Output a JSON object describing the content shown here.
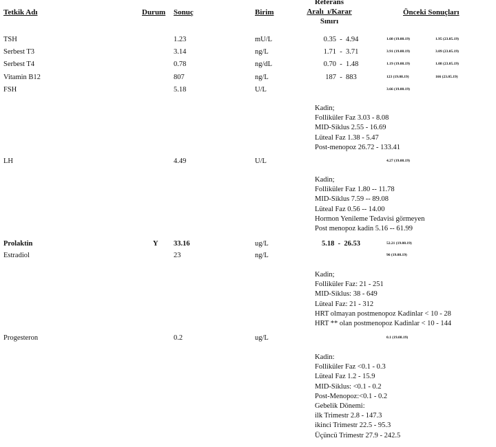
{
  "header": {
    "test": "Tetkik Adı",
    "status": "Durum",
    "result": "Sonuç",
    "unit": "Birim",
    "reference": [
      "Referans",
      "Aralı  ı/Karar",
      "Sınırı"
    ],
    "previous": "Önceki Sonuçları"
  },
  "rows": [
    {
      "test": "TSH",
      "result": "1.23",
      "unit": "mU/L",
      "reference": "0.35  -  4.94",
      "previous": [
        "1.60 (19.08.19)",
        "1.95 (23.05.19)"
      ]
    },
    {
      "test": "Serbest T3",
      "result": "3.14",
      "unit": "ng/L",
      "reference": "1.71  -  3.71",
      "previous": [
        "3.91 (19.08.19)",
        "3.09 (23.05.19)"
      ]
    },
    {
      "test": "Serbest T4",
      "result": "0.78",
      "unit": "ng/dL",
      "reference": "0.70  -  1.48",
      "previous": [
        "1.19 (19.08.19)",
        "1.08 (23.05.19)"
      ]
    },
    {
      "test": "Vitamin B12",
      "result": "807",
      "unit": "ng/L",
      "reference": "187  -  883",
      "previous": [
        "123 (19.08.19)",
        "166 (23.05.19)"
      ]
    },
    {
      "test": "FSH",
      "result": "5.18",
      "unit": "U/L",
      "previous": [
        "3.66 (19.08.19)"
      ],
      "notes": [
        "Kadin;",
        "Folliküler Faz 3.03 - 8.08",
        "MID-Siklus 2.55 - 16.69",
        "Lüteal Faz 1.38 - 5.47",
        "Post-menopoz 26.72 - 133.41"
      ]
    },
    {
      "test": "LH",
      "result": "4.49",
      "unit": "U/L",
      "previous": [
        "4.27 (19.08.19)"
      ],
      "notes": [
        "Kadin;",
        "Folliküler Faz 1.80 -- 11.78",
        "MID-Siklus 7.59 -- 89.08",
        "Lüteal Faz 0.56 -- 14.00",
        "Hormon Yenileme Tedavisi görmeyen",
        "Post menopoz kadin 5.16 -- 61.99"
      ]
    },
    {
      "test": "Prolaktin",
      "status": "Y",
      "result": "33.16",
      "unit": "ug/L",
      "reference": "5.18  -  26.53",
      "previous": [
        "52.21 (19.08.19)"
      ]
    },
    {
      "test": "Estradiol",
      "result": "23",
      "unit": "ng/L",
      "previous": [
        "96 (19.08.19)"
      ],
      "notes": [
        "Kadin;",
        "Folliküler Faz: 21 - 251",
        "MID-Siklus: 38 - 649",
        "Lüteal Faz: 21 - 312",
        "HRT olmayan postmenopoz Kadinlar < 10 - 28",
        "HRT ** olan postmenopoz Kadinlar < 10 - 144"
      ]
    },
    {
      "test": "Progesteron",
      "result": "0.2",
      "unit": "ug/L",
      "previous": [
        "0.1 (19.08.19)"
      ],
      "notes": [
        "Kadin:",
        "Folliküler Faz <0.1 - 0.3",
        "Lüteal Faz 1.2 - 15.9",
        "MID-Siklus: <0.1 - 0.2",
        "Post-Menopoz:<0.1 - 0.2",
        "Gebelik Dönemi:",
        "ilk Trimestr 2.8 - 147.3",
        "ikinci Trimestr 22.5 - 95.3",
        "Üçüncü Trimestr 27.9 - 242.5"
      ]
    }
  ]
}
